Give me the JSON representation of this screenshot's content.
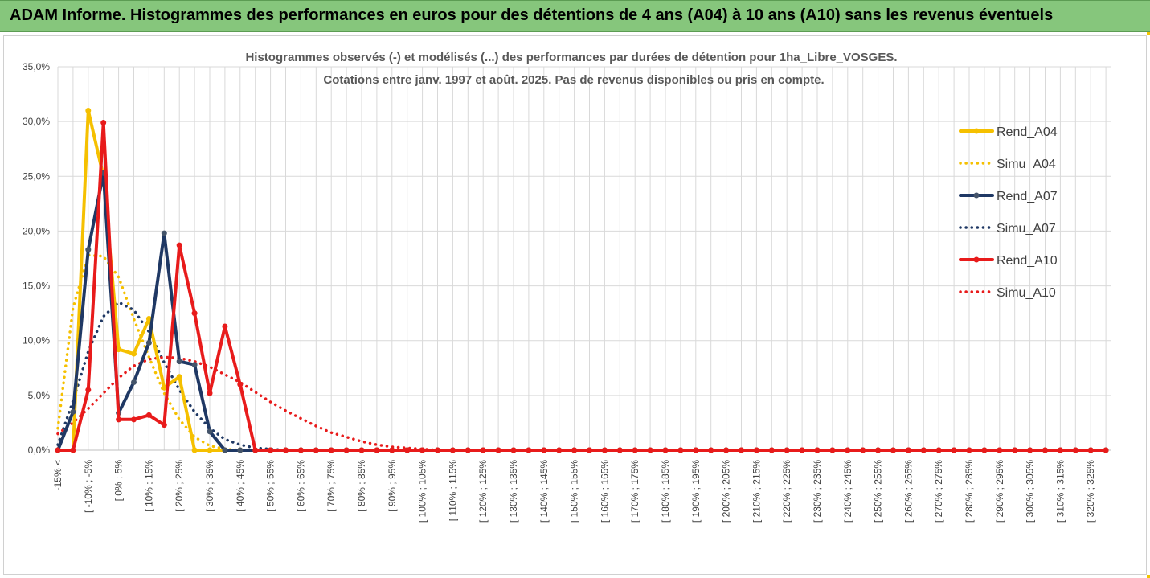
{
  "header": {
    "title": "ADAM Informe. Histogrammes des performances en euros pour des détentions de 4 ans (A04) à 10 ans (A10) sans les revenus éventuels"
  },
  "chart_data": {
    "type": "line",
    "title_line1": "Histogrammes observés (-) et modélisés (...) des performances par durées de détention pour 1ha_Libre_VOSGES.",
    "title_line2": "Cotations entre janv. 1997 et août. 2025. Pas de revenus disponibles ou pris en compte.",
    "ylim": [
      0,
      0.35
    ],
    "yticks": [
      "0,0%",
      "5,0%",
      "10,0%",
      "15,0%",
      "20,0%",
      "25,0%",
      "30,0%",
      "35,0%"
    ],
    "grid": true,
    "legend_position": "right",
    "categories_count": 70,
    "x_labels": [
      {
        "i": 0,
        "text": "-15% <"
      },
      {
        "i": 2,
        "text": "[ -10% ; -5%"
      },
      {
        "i": 4,
        "text": "[ 0% ; 5%"
      },
      {
        "i": 6,
        "text": "[ 10% ; 15%"
      },
      {
        "i": 8,
        "text": "[ 20% ; 25%"
      },
      {
        "i": 10,
        "text": "[ 30% ; 35%"
      },
      {
        "i": 12,
        "text": "[ 40% ; 45%"
      },
      {
        "i": 14,
        "text": "[ 50% ; 55%"
      },
      {
        "i": 16,
        "text": "[ 60% ; 65%"
      },
      {
        "i": 18,
        "text": "[ 70% ; 75%"
      },
      {
        "i": 20,
        "text": "[ 80% ; 85%"
      },
      {
        "i": 22,
        "text": "[ 90% ; 95%"
      },
      {
        "i": 24,
        "text": "[ 100% ; 105%"
      },
      {
        "i": 26,
        "text": "[ 110% ; 115%"
      },
      {
        "i": 28,
        "text": "[ 120% ; 125%"
      },
      {
        "i": 30,
        "text": "[ 130% ; 135%"
      },
      {
        "i": 32,
        "text": "[ 140% ; 145%"
      },
      {
        "i": 34,
        "text": "[ 150% ; 155%"
      },
      {
        "i": 36,
        "text": "[ 160% ; 165%"
      },
      {
        "i": 38,
        "text": "[ 170% ; 175%"
      },
      {
        "i": 40,
        "text": "[ 180% ; 185%"
      },
      {
        "i": 42,
        "text": "[ 190% ; 195%"
      },
      {
        "i": 44,
        "text": "[ 200% ; 205%"
      },
      {
        "i": 46,
        "text": "[ 210% ; 215%"
      },
      {
        "i": 48,
        "text": "[ 220% ; 225%"
      },
      {
        "i": 50,
        "text": "[ 230% ; 235%"
      },
      {
        "i": 52,
        "text": "[ 240% ; 245%"
      },
      {
        "i": 54,
        "text": "[ 250% ; 255%"
      },
      {
        "i": 56,
        "text": "[ 260% ; 265%"
      },
      {
        "i": 58,
        "text": "[ 270% ; 275%"
      },
      {
        "i": 60,
        "text": "[ 280% ; 285%"
      },
      {
        "i": 62,
        "text": "[ 290% ; 295%"
      },
      {
        "i": 64,
        "text": "[ 300% ; 305%"
      },
      {
        "i": 66,
        "text": "[ 310% ; 315%"
      },
      {
        "i": 68,
        "text": "[ 320% ; 325%"
      }
    ],
    "series": [
      {
        "name": "Rend_A04",
        "style": "solid",
        "color": "#f5c000",
        "markers": true,
        "values": [
          0,
          0,
          0.31,
          0.25,
          0.092,
          0.088,
          0.12,
          0.057,
          0.067,
          0,
          0,
          0,
          0
        ]
      },
      {
        "name": "Simu_A04",
        "style": "dotted",
        "color": "#f5c000",
        "markers": false,
        "values": [
          0.02,
          0.13,
          0.178,
          0.177,
          0.158,
          0.12,
          0.085,
          0.052,
          0.028,
          0.012,
          0.004,
          0.001,
          0
        ]
      },
      {
        "name": "Rend_A07",
        "style": "solid",
        "color": "#1f3864",
        "markers": true,
        "values": [
          0,
          0.035,
          0.183,
          0.253,
          0.034,
          0.062,
          0.098,
          0.198,
          0.081,
          0.078,
          0.017,
          0,
          0
        ]
      },
      {
        "name": "Simu_A07",
        "style": "dotted",
        "color": "#1f3864",
        "markers": false,
        "values": [
          0.005,
          0.045,
          0.09,
          0.122,
          0.135,
          0.128,
          0.108,
          0.08,
          0.055,
          0.035,
          0.02,
          0.01,
          0.005,
          0.002,
          0.001,
          0
        ]
      },
      {
        "name": "Rend_A10",
        "style": "solid",
        "color": "#e81b1b",
        "markers": true,
        "values": [
          0,
          0,
          0.055,
          0.299,
          0.028,
          0.028,
          0.032,
          0.023,
          0.187,
          0.125,
          0.052,
          0.113,
          0.06,
          0
        ]
      },
      {
        "name": "Simu_A10",
        "style": "dotted",
        "color": "#e81b1b",
        "markers": false,
        "values": [
          0.015,
          0.025,
          0.038,
          0.052,
          0.066,
          0.077,
          0.083,
          0.085,
          0.084,
          0.081,
          0.076,
          0.069,
          0.062,
          0.053,
          0.044,
          0.036,
          0.029,
          0.022,
          0.016,
          0.012,
          0.008,
          0.005,
          0.003,
          0.002,
          0.001,
          0
        ]
      }
    ]
  }
}
